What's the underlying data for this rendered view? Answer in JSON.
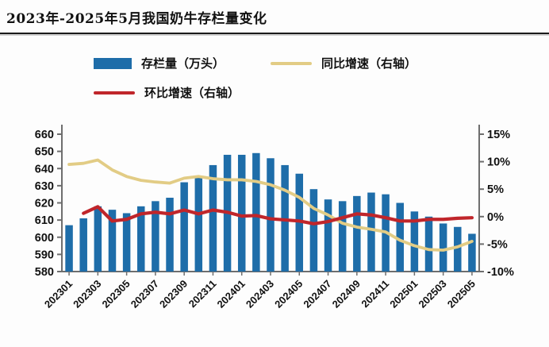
{
  "page": {
    "title": "2023年-2025年5月我国奶牛存栏量变化"
  },
  "legend": [
    {
      "label": "存栏量（万头）",
      "type": "bar",
      "color": "#1E6DA9"
    },
    {
      "label": "同比增速（右轴）",
      "type": "line",
      "color": "#E2CC85"
    },
    {
      "label": "环比增速（右轴）",
      "type": "line",
      "color": "#C0262B"
    }
  ],
  "chart_data": {
    "type": "combo-bar-line",
    "title": "2023年-2025年5月我国奶牛存栏量变化",
    "categories": [
      "202301",
      "202302",
      "202303",
      "202304",
      "202305",
      "202306",
      "202307",
      "202308",
      "202309",
      "202310",
      "202311",
      "202312",
      "202401",
      "202402",
      "202403",
      "202404",
      "202405",
      "202406",
      "202407",
      "202408",
      "202409",
      "202410",
      "202411",
      "202412",
      "202501",
      "202502",
      "202503",
      "202504",
      "202505"
    ],
    "series": [
      {
        "name": "存栏量（万头）",
        "type": "bar",
        "axis": "left",
        "color": "#1E6DA9",
        "values": [
          607,
          611,
          618,
          616,
          614,
          618,
          621,
          623,
          632,
          635,
          642,
          648,
          648,
          649,
          646,
          642,
          637,
          628,
          622,
          621,
          624,
          626,
          625,
          620,
          615,
          612,
          608,
          606,
          602
        ]
      },
      {
        "name": "同比增速（右轴）",
        "type": "line",
        "axis": "right",
        "color": "#E2CC85",
        "values": [
          9.5,
          9.7,
          10.3,
          8.5,
          7.3,
          6.6,
          6.3,
          6.1,
          7.0,
          7.3,
          6.9,
          6.7,
          6.7,
          6.4,
          5.8,
          4.8,
          3.5,
          1.5,
          0.3,
          -1.2,
          -1.9,
          -2.3,
          -2.8,
          -4.3,
          -5.3,
          -6.0,
          -6.1,
          -5.5,
          -4.5
        ]
      },
      {
        "name": "环比增速（右轴）",
        "type": "line",
        "axis": "right",
        "color": "#C0262B",
        "values": [
          null,
          0.6,
          1.8,
          -0.8,
          -0.5,
          0.5,
          0.8,
          0.5,
          1.2,
          0.5,
          1.2,
          0.8,
          0.1,
          0.2,
          -0.4,
          -0.6,
          -0.8,
          -1.3,
          -0.9,
          -0.2,
          0.5,
          0.3,
          -0.2,
          -0.8,
          -0.8,
          -0.5,
          -0.5,
          -0.3,
          -0.2
        ]
      }
    ],
    "left_axis": {
      "min": 580,
      "max": 660,
      "step": 10,
      "ticks": [
        "660",
        "650",
        "640",
        "630",
        "620",
        "610",
        "600",
        "590",
        "580"
      ]
    },
    "right_axis": {
      "min": -10,
      "max": 15,
      "step": 5,
      "ticks": [
        "15%",
        "10%",
        "5%",
        "0%",
        "-5%",
        "-10%"
      ]
    },
    "x_label_every": 2,
    "grid": false,
    "legend_position": "top"
  }
}
